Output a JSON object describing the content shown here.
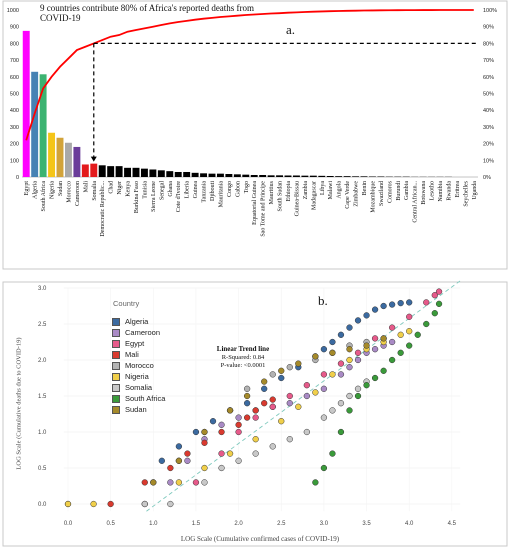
{
  "panel_a": {
    "title": "9 countries contribute 80% of Africa's reported deaths from COVID-19",
    "label": "a."
  },
  "panel_b": {
    "label": "b.",
    "xlabel": "LOG Scale (Cumulative confirmed cases of COVID-19)",
    "ylabel": "LOG Scale (Cumulative deaths due to COVID-19)",
    "legend_title": "Country",
    "trend_title": "Linear Trend line",
    "trend_r2": "R-Squared:  0.84",
    "trend_p": "P-value: <0.0001"
  },
  "chart_data": [
    {
      "type": "bar",
      "title": "9 countries contribute 80% of Africa's reported deaths from COVID-19",
      "ylim": [
        0,
        1000
      ],
      "y_ticks": [
        0,
        100,
        200,
        300,
        400,
        500,
        600,
        700,
        800,
        900,
        1000
      ],
      "y2_ticks": [
        "0%",
        "10%",
        "20%",
        "30%",
        "40%",
        "50%",
        "60%",
        "70%",
        "80%",
        "90%",
        "100%"
      ],
      "categories": [
        "Egypt",
        "Algeria",
        "South Africa",
        "Nigeria",
        "Sudan",
        "Morocco",
        "Cameroon",
        "Mali",
        "Somalia",
        "Democratic Republic...",
        "Chad",
        "Niger",
        "Kenya",
        "Burkina Faso",
        "Tunisia",
        "Sierra Leone",
        "Senegal",
        "Ghana",
        "Cote d'Ivoire",
        "Liberia",
        "Guinea",
        "Tanzania",
        "Djibouti",
        "Mauritania",
        "Congo",
        "Gabon",
        "Togo",
        "Equatorial Guinea",
        "Sao Tome and Principe",
        "Mauritius",
        "South Sudan",
        "Ethiopia",
        "Guinea-Bissau",
        "Zambia",
        "Madagascar",
        "Libya",
        "Malawi",
        "Angola",
        "Cape Verde",
        "Zimbabwe",
        "Benin",
        "Mozambique",
        "Swaziland",
        "Comoros",
        "Burundi",
        "Gambia",
        "Central African...",
        "Botswana",
        "Lesotho",
        "Namibia",
        "Rwanda",
        "Eritrea",
        "Seychelles",
        "Uganda"
      ],
      "series": [
        {
          "kind": "bar",
          "values": [
            875,
            630,
            615,
            265,
            235,
            205,
            180,
            75,
            80,
            70,
            65,
            65,
            55,
            55,
            50,
            45,
            40,
            35,
            30,
            30,
            25,
            22,
            20,
            20,
            18,
            16,
            14,
            12,
            12,
            10,
            10,
            9,
            9,
            8,
            8,
            7,
            6,
            5,
            5,
            4,
            4,
            3,
            3,
            2,
            2,
            2,
            1,
            1,
            1,
            1,
            1,
            0,
            0,
            0
          ]
        },
        {
          "kind": "line",
          "axis": "secondary",
          "unit": "percent",
          "values": [
            22,
            38,
            53,
            60,
            66,
            71,
            76,
            78,
            80,
            82,
            84,
            85,
            87,
            88,
            89,
            90,
            91,
            92,
            92.8,
            93.5,
            94.2,
            94.8,
            95.3,
            95.8,
            96.2,
            96.6,
            97,
            97.3,
            97.6,
            97.9,
            98.1,
            98.4,
            98.6,
            98.8,
            99,
            99.15,
            99.3,
            99.4,
            99.5,
            99.6,
            99.7,
            99.75,
            99.8,
            99.85,
            99.9,
            99.92,
            99.94,
            99.96,
            99.97,
            99.98,
            99.99,
            100,
            100,
            100
          ]
        }
      ],
      "bar_colors": [
        "#ff00ff",
        "#4682b4",
        "#3cb371",
        "#f5c518",
        "#d2a33a",
        "#a9a9a9",
        "#6a3d9a",
        "#e31a1c",
        "#e31a1c"
      ],
      "other_bar_color": "#000000",
      "pareto_line_color": "#ff0000",
      "threshold": {
        "percent": 80,
        "category": "Somalia"
      }
    },
    {
      "type": "scatter",
      "xlim": [
        0,
        4.6
      ],
      "ylim": [
        -0.1,
        3.0
      ],
      "x_ticks": [
        "0.0",
        "0.5",
        "1.0",
        "1.5",
        "2.0",
        "2.5",
        "3.0",
        "3.5",
        "4.0",
        "4.5"
      ],
      "y_ticks": [
        "0.0",
        "0.5",
        "1.0",
        "1.5",
        "2.0",
        "2.5",
        "3.0"
      ],
      "legend_position": "top-left",
      "trend": {
        "intercept": -0.9,
        "slope": 0.87,
        "r_squared": 0.84,
        "p_value": "<0.0001"
      },
      "series": [
        {
          "name": "Algeria",
          "color": "#3b6aa0",
          "points": [
            [
              1.1,
              0.6
            ],
            [
              1.3,
              0.8
            ],
            [
              1.5,
              1.0
            ],
            [
              1.7,
              1.15
            ],
            [
              1.9,
              1.3
            ],
            [
              2.1,
              1.4
            ],
            [
              2.3,
              1.6
            ],
            [
              2.5,
              1.75
            ],
            [
              2.7,
              1.9
            ],
            [
              2.9,
              2.05
            ],
            [
              3.0,
              2.15
            ],
            [
              3.1,
              2.25
            ],
            [
              3.2,
              2.35
            ],
            [
              3.3,
              2.45
            ],
            [
              3.4,
              2.55
            ],
            [
              3.5,
              2.62
            ],
            [
              3.6,
              2.7
            ],
            [
              3.7,
              2.75
            ],
            [
              3.8,
              2.77
            ],
            [
              3.9,
              2.79
            ],
            [
              4.0,
              2.8
            ]
          ]
        },
        {
          "name": "Cameroon",
          "color": "#a98ac5",
          "points": [
            [
              0.9,
              0.0
            ],
            [
              1.2,
              0.3
            ],
            [
              1.4,
              0.6
            ],
            [
              1.6,
              0.9
            ],
            [
              1.8,
              1.1
            ],
            [
              2.0,
              1.2
            ],
            [
              2.2,
              1.3
            ],
            [
              2.4,
              1.35
            ],
            [
              2.6,
              1.4
            ],
            [
              2.8,
              1.5
            ],
            [
              3.0,
              1.6
            ],
            [
              3.2,
              1.8
            ],
            [
              3.3,
              1.9
            ],
            [
              3.4,
              2.0
            ],
            [
              3.5,
              2.1
            ],
            [
              3.6,
              2.15
            ],
            [
              3.7,
              2.2
            ],
            [
              3.8,
              2.25
            ]
          ]
        },
        {
          "name": "Egypt",
          "color": "#e65a8a",
          "points": [
            [
              1.5,
              0.3
            ],
            [
              1.8,
              0.7
            ],
            [
              2.0,
              1.0
            ],
            [
              2.2,
              1.2
            ],
            [
              2.4,
              1.35
            ],
            [
              2.6,
              1.5
            ],
            [
              2.8,
              1.65
            ],
            [
              3.0,
              1.8
            ],
            [
              3.2,
              1.95
            ],
            [
              3.4,
              2.1
            ],
            [
              3.6,
              2.3
            ],
            [
              3.8,
              2.45
            ],
            [
              4.0,
              2.6
            ],
            [
              4.2,
              2.8
            ],
            [
              4.3,
              2.9
            ],
            [
              4.35,
              2.95
            ]
          ]
        },
        {
          "name": "Mali",
          "color": "#d93a2f",
          "points": [
            [
              0.0,
              0.0
            ],
            [
              0.5,
              0.0
            ],
            [
              0.9,
              0.3
            ],
            [
              1.2,
              0.5
            ],
            [
              1.4,
              0.7
            ],
            [
              1.6,
              0.85
            ],
            [
              1.8,
              1.0
            ],
            [
              2.0,
              1.1
            ],
            [
              2.1,
              1.2
            ],
            [
              2.2,
              1.3
            ],
            [
              2.3,
              1.4
            ],
            [
              2.4,
              1.45
            ]
          ]
        },
        {
          "name": "Morocco",
          "color": "#b3b3b3",
          "points": [
            [
              1.0,
              0.3
            ],
            [
              1.3,
              0.6
            ],
            [
              1.6,
              1.0
            ],
            [
              1.9,
              1.3
            ],
            [
              2.1,
              1.6
            ],
            [
              2.4,
              1.8
            ],
            [
              2.6,
              1.9
            ],
            [
              2.9,
              2.0
            ],
            [
              3.1,
              2.1
            ],
            [
              3.3,
              2.2
            ],
            [
              3.5,
              2.25
            ],
            [
              3.7,
              2.3
            ]
          ]
        },
        {
          "name": "Nigeria",
          "color": "#f0cf4a",
          "points": [
            [
              0.0,
              0.0
            ],
            [
              0.3,
              0.0
            ],
            [
              1.3,
              0.3
            ],
            [
              1.6,
              0.5
            ],
            [
              1.9,
              0.7
            ],
            [
              2.2,
              0.9
            ],
            [
              2.5,
              1.15
            ],
            [
              2.7,
              1.35
            ],
            [
              2.9,
              1.55
            ],
            [
              3.1,
              1.8
            ],
            [
              3.3,
              2.0
            ],
            [
              3.5,
              2.15
            ],
            [
              3.7,
              2.25
            ],
            [
              3.9,
              2.35
            ],
            [
              4.0,
              2.4
            ]
          ]
        },
        {
          "name": "Somalia",
          "color": "#c8c8c8",
          "points": [
            [
              0.9,
              0.0
            ],
            [
              1.2,
              0.0
            ],
            [
              1.6,
              0.3
            ],
            [
              1.8,
              0.5
            ],
            [
              2.0,
              0.6
            ],
            [
              2.2,
              0.7
            ],
            [
              2.4,
              0.8
            ],
            [
              2.6,
              0.9
            ],
            [
              2.8,
              1.0
            ],
            [
              3.0,
              1.2
            ],
            [
              3.1,
              1.3
            ],
            [
              3.2,
              1.4
            ],
            [
              3.3,
              1.5
            ],
            [
              3.4,
              1.6
            ],
            [
              3.5,
              1.7
            ]
          ]
        },
        {
          "name": "South Africa",
          "color": "#3a9a3a",
          "points": [
            [
              2.9,
              0.3
            ],
            [
              3.0,
              0.5
            ],
            [
              3.1,
              0.7
            ],
            [
              3.2,
              1.0
            ],
            [
              3.3,
              1.3
            ],
            [
              3.4,
              1.5
            ],
            [
              3.5,
              1.65
            ],
            [
              3.6,
              1.75
            ],
            [
              3.7,
              1.85
            ],
            [
              3.8,
              2.0
            ],
            [
              3.9,
              2.1
            ],
            [
              4.0,
              2.2
            ],
            [
              4.1,
              2.35
            ],
            [
              4.2,
              2.5
            ],
            [
              4.3,
              2.65
            ],
            [
              4.35,
              2.78
            ]
          ]
        },
        {
          "name": "Sudan",
          "color": "#a58a2a",
          "points": [
            [
              1.0,
              0.3
            ],
            [
              1.3,
              0.6
            ],
            [
              1.6,
              1.0
            ],
            [
              1.9,
              1.3
            ],
            [
              2.1,
              1.5
            ],
            [
              2.3,
              1.7
            ],
            [
              2.5,
              1.85
            ],
            [
              2.7,
              1.95
            ],
            [
              2.9,
              2.05
            ],
            [
              3.1,
              2.1
            ],
            [
              3.3,
              2.15
            ],
            [
              3.5,
              2.2
            ],
            [
              3.7,
              2.3
            ]
          ]
        }
      ]
    }
  ]
}
